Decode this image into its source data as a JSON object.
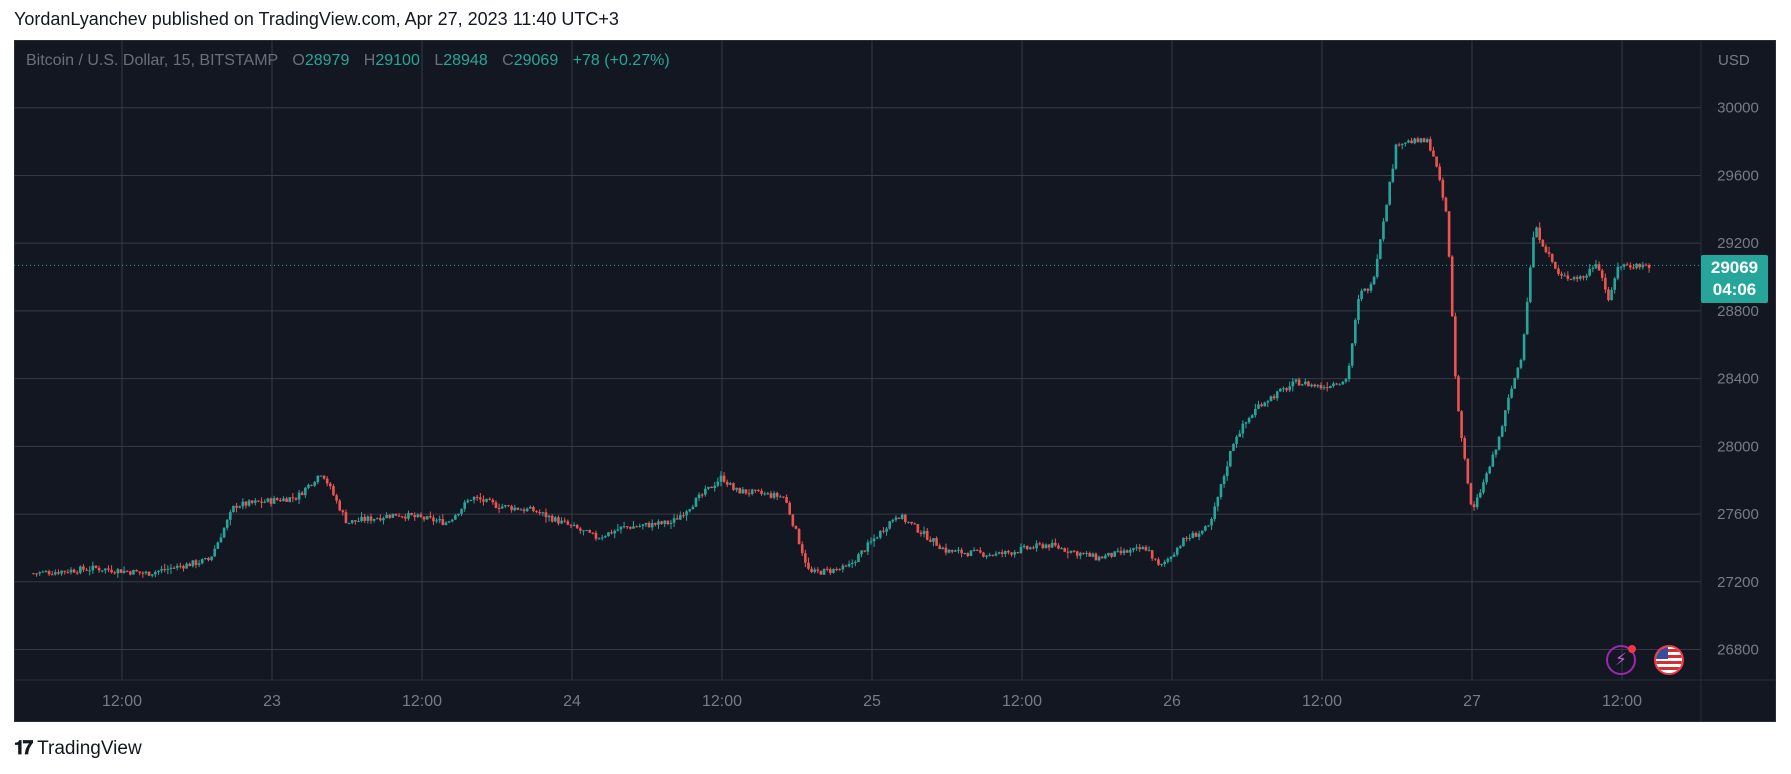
{
  "header": {
    "published_line": "YordanLyanchev published on TradingView.com, Apr 27, 2023 11:40 UTC+3"
  },
  "legend": {
    "symbol": "Bitcoin / U.S. Dollar, 15, BITSTAMP",
    "open_label": "O",
    "open": "28979",
    "high_label": "H",
    "high": "29100",
    "low_label": "L",
    "low": "28948",
    "close_label": "C",
    "close": "29069",
    "change": "+78 (+0.27%)"
  },
  "price_axis": {
    "currency": "USD"
  },
  "last_price": {
    "price": "29069",
    "countdown": "04:06"
  },
  "footer": {
    "brand": "TradingView"
  },
  "icons": {
    "lightning": "lightning-icon",
    "flag": "us-flag-icon"
  },
  "colors": {
    "up": "#26a69a",
    "down": "#ef5350",
    "background": "#131722",
    "grid": "#363a45"
  },
  "chart_data": {
    "type": "candlestick",
    "symbol": "Bitcoin / U.S. Dollar",
    "interval": "15",
    "exchange": "BITSTAMP",
    "ylim": [
      26620,
      30400
    ],
    "y_ticks": [
      26800,
      27200,
      27600,
      28000,
      28400,
      28800,
      29200,
      29600,
      30000
    ],
    "x_ticks": [
      "12:00",
      "23",
      "12:00",
      "24",
      "12:00",
      "25",
      "12:00",
      "26",
      "12:00",
      "27",
      "12:00"
    ],
    "x_range": [
      "Apr 22 04:55",
      "Apr 27 14:15"
    ],
    "x_tick_times": [
      "Apr 22 12:00",
      "Apr 23 00:00",
      "Apr 23 12:00",
      "Apr 24 00:00",
      "Apr 24 12:00",
      "Apr 25 00:00",
      "Apr 25 12:00",
      "Apr 26 00:00",
      "Apr 26 12:00",
      "Apr 27 00:00",
      "Apr 27 12:00"
    ],
    "last_price": 29069,
    "grid": true,
    "series": [
      {
        "name": "price_path",
        "times": [
          "Apr 22 04:55",
          "Apr 22 10:00",
          "Apr 22 14:00",
          "Apr 22 19:00",
          "Apr 22 21:00",
          "Apr 23 02:00",
          "Apr 23 04:00",
          "Apr 23 06:00",
          "Apr 23 10:00",
          "Apr 23 14:00",
          "Apr 23 16:00",
          "Apr 23 18:00",
          "Apr 23 21:00",
          "Apr 24 02:00",
          "Apr 24 04:00",
          "Apr 24 08:00",
          "Apr 24 12:00",
          "Apr 24 13:00",
          "Apr 24 17:00",
          "Apr 24 19:00",
          "Apr 24 22:00",
          "Apr 25 02:00",
          "Apr 25 06:00",
          "Apr 25 10:00",
          "Apr 25 14:00",
          "Apr 25 18:00",
          "Apr 25 22:00",
          "Apr 25 23:00",
          "Apr 26 01:00",
          "Apr 26 03:00",
          "Apr 26 05:00",
          "Apr 26 07:00",
          "Apr 26 10:00",
          "Apr 26 12:00",
          "Apr 26 14:00",
          "Apr 26 15:00",
          "Apr 26 16:00",
          "Apr 26 18:00",
          "Apr 26 20:30",
          "Apr 26 21:00",
          "Apr 26 22:00",
          "Apr 26 22:45",
          "Apr 27 00:00",
          "Apr 27 02:00",
          "Apr 27 03:00",
          "Apr 27 04:00",
          "Apr 27 05:00",
          "Apr 27 07:00",
          "Apr 27 09:00",
          "Apr 27 10:00",
          "Apr 27 11:00",
          "Apr 27 11:40"
        ],
        "values": [
          27250,
          27280,
          27250,
          27330,
          27650,
          27700,
          27850,
          27550,
          27600,
          27550,
          27700,
          27650,
          27620,
          27460,
          27520,
          27550,
          27820,
          27740,
          27700,
          27250,
          27280,
          27600,
          27380,
          27360,
          27420,
          27340,
          27400,
          27280,
          27450,
          27520,
          28050,
          28250,
          28380,
          28350,
          28400,
          28900,
          28950,
          29800,
          29800,
          29700,
          29350,
          28300,
          27600,
          28000,
          28300,
          28550,
          29300,
          29000,
          29000,
          29100,
          28850,
          29069
        ]
      }
    ]
  }
}
